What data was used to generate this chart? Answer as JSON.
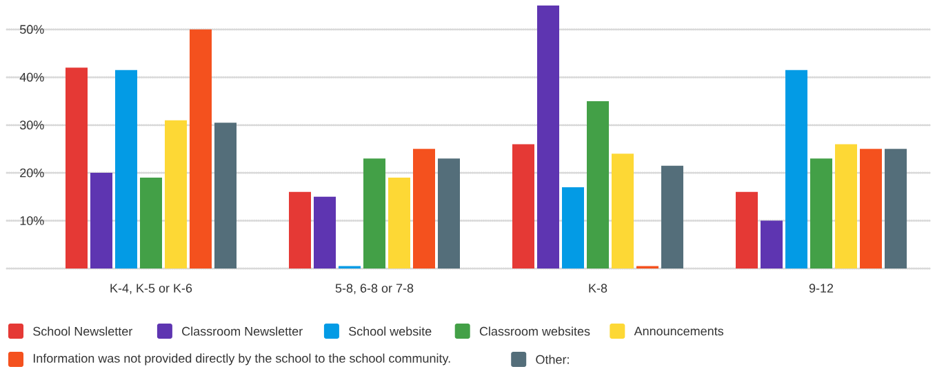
{
  "chart_data": {
    "type": "bar",
    "categories": [
      "K-4, K-5 or K-6",
      "5-8, 6-8 or 7-8",
      "K-8",
      "9-12"
    ],
    "series": [
      {
        "name": "School Newsletter",
        "color": "#e53935",
        "values": [
          42,
          16,
          26,
          16
        ]
      },
      {
        "name": "Classroom Newsletter",
        "color": "#5e35b1",
        "values": [
          20,
          15,
          55,
          10
        ]
      },
      {
        "name": "School website",
        "color": "#039be5",
        "values": [
          41.5,
          0.5,
          17,
          41.5
        ]
      },
      {
        "name": "Classroom websites",
        "color": "#43a047",
        "values": [
          19,
          23,
          35,
          23
        ]
      },
      {
        "name": "Announcements",
        "color": "#fdd835",
        "values": [
          31,
          19,
          24,
          26
        ]
      },
      {
        "name": "Information was not provided directly by the school to the school community.",
        "color": "#f4511e",
        "values": [
          50,
          25,
          0.5,
          25
        ]
      },
      {
        "name": "Other:",
        "color": "#546e7a",
        "values": [
          30.5,
          23,
          21.5,
          25
        ]
      }
    ],
    "yticks": [
      {
        "value": 0,
        "label": null
      },
      {
        "value": 10,
        "label": "10%"
      },
      {
        "value": 20,
        "label": "20%"
      },
      {
        "value": 30,
        "label": "30%"
      },
      {
        "value": 40,
        "label": "40%"
      },
      {
        "value": 50,
        "label": "50%"
      }
    ],
    "ylim": [
      0,
      55
    ],
    "grid": "y",
    "legend": "bottom"
  }
}
